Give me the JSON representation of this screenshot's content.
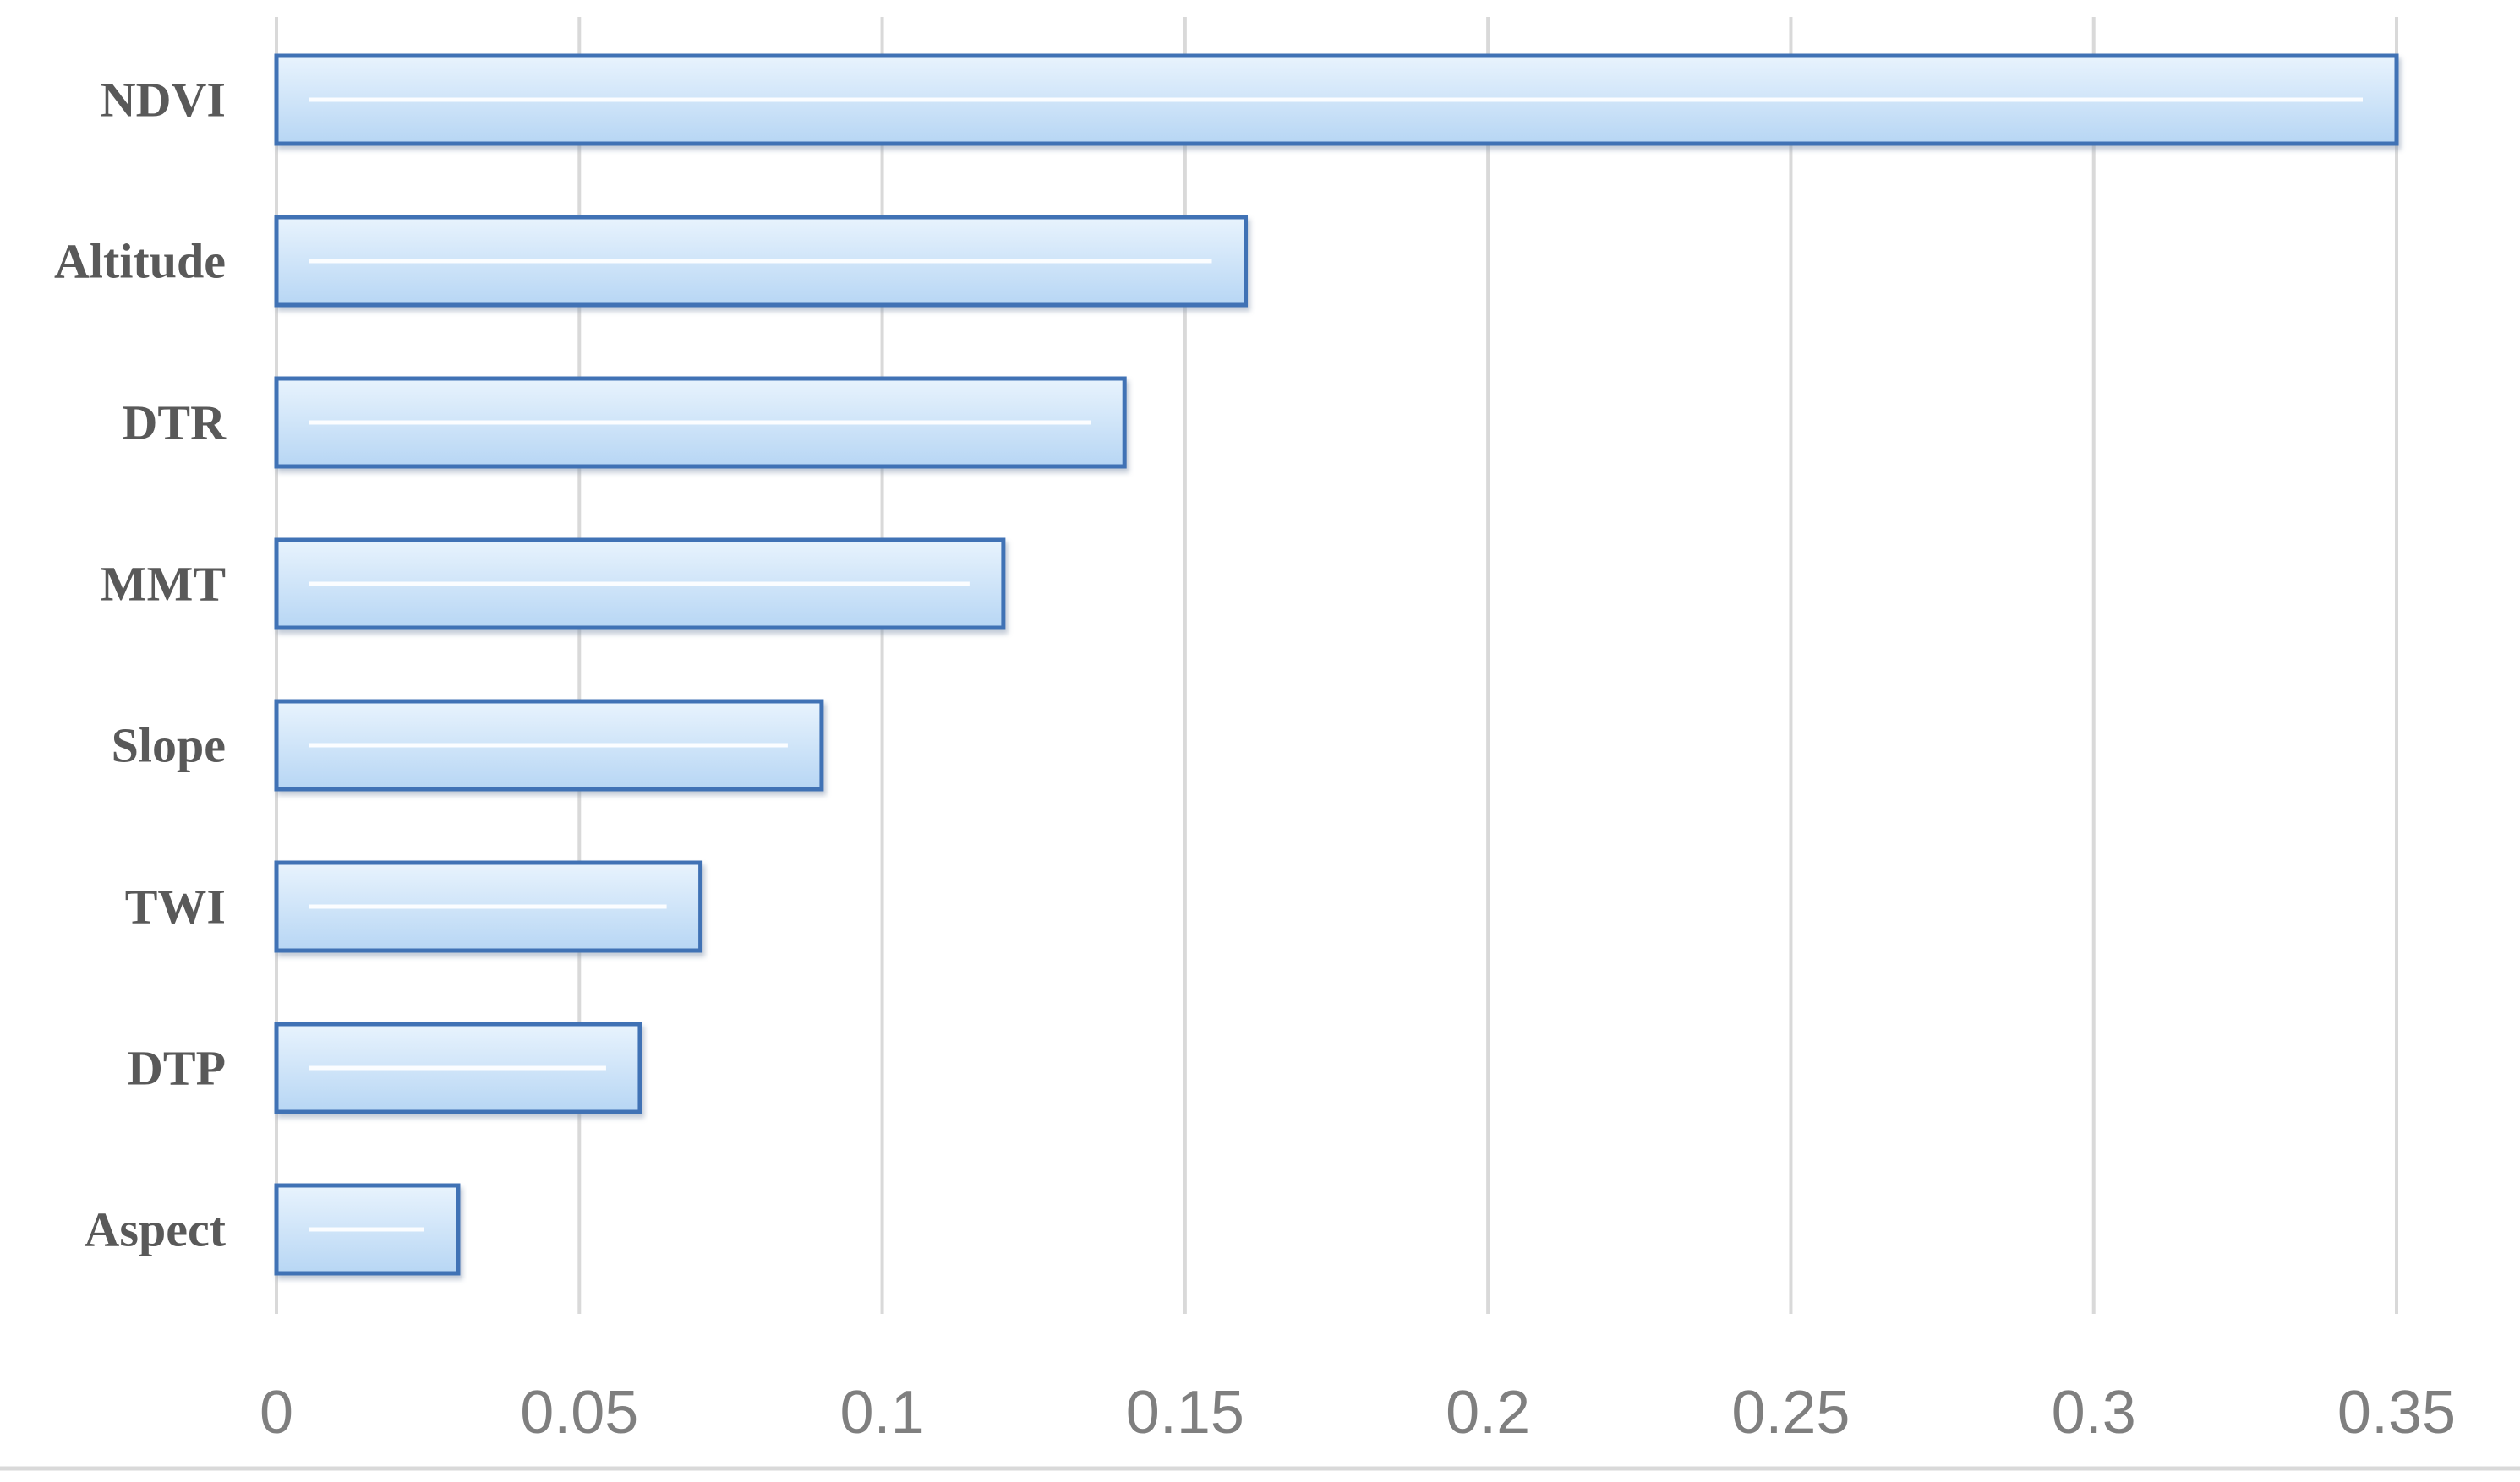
{
  "chart_data": {
    "type": "bar",
    "orientation": "horizontal",
    "categories": [
      "NDVI",
      "Altitude",
      "DTR",
      "MMT",
      "Slope",
      "TWI",
      "DTP",
      "Aspect"
    ],
    "values": [
      0.35,
      0.16,
      0.14,
      0.12,
      0.09,
      0.07,
      0.06,
      0.03
    ],
    "xlim": [
      0,
      0.35
    ],
    "xticks": [
      "0",
      "0.05",
      "0.1",
      "0.15",
      "0.2",
      "0.25",
      "0.3",
      "0.35"
    ],
    "title": "",
    "xlabel": "",
    "ylabel": "",
    "grid": "vertical",
    "legend": "none",
    "colors": {
      "bar_fill_top": "#e8f3fd",
      "bar_fill_bottom": "#b7d6f4",
      "bar_stroke": "#3f72b5",
      "grid": "#d9d9d9",
      "axis": "#d9d9d9",
      "category_text": "#595959",
      "tick_text": "#7f7f7f"
    }
  }
}
